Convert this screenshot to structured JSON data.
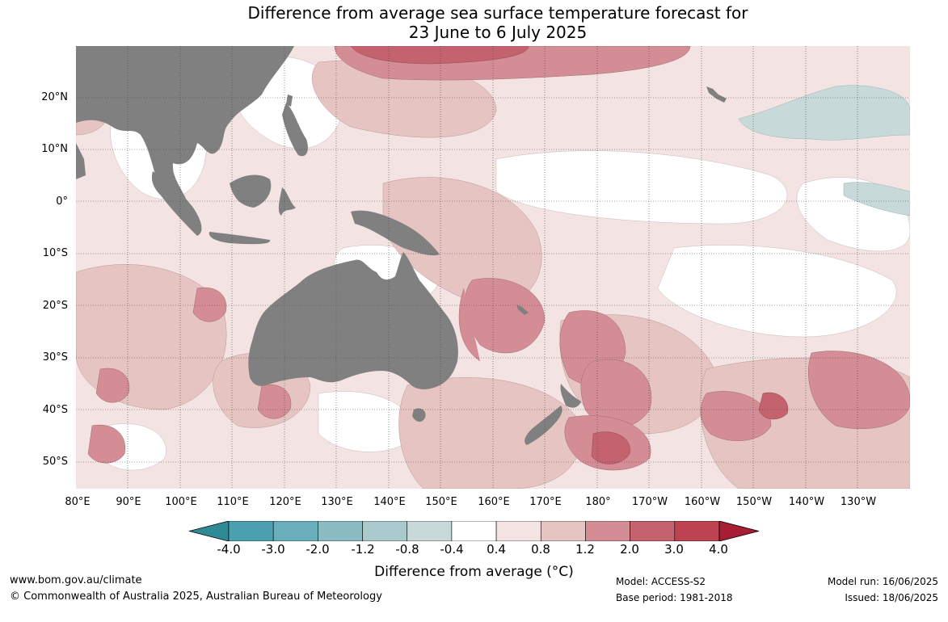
{
  "title_line1": "Difference from average sea surface temperature forecast for",
  "title_line2": "23 June to 6 July 2025",
  "map": {
    "lat_labels": [
      "20°N",
      "10°N",
      "0°",
      "10°S",
      "20°S",
      "30°S",
      "40°S",
      "50°S"
    ],
    "lon_labels": [
      "80°E",
      "90°E",
      "100°E",
      "110°E",
      "120°E",
      "130°E",
      "140°E",
      "150°E",
      "160°E",
      "170°E",
      "180°",
      "170°W",
      "160°W",
      "150°W",
      "140°W",
      "130°W"
    ],
    "land_color": "#808080",
    "grid": "dotted"
  },
  "colorbar": {
    "ticks": [
      "-4.0",
      "-3.0",
      "-2.0",
      "-1.2",
      "-0.8",
      "-0.4",
      "0.4",
      "0.8",
      "1.2",
      "2.0",
      "3.0",
      "4.0"
    ],
    "colors": [
      "#2f8a96",
      "#4aa0ae",
      "#6aaebb",
      "#8bbcc3",
      "#aac9cc",
      "#c8d9d9",
      "#ffffff",
      "#f3e4e3",
      "#e6c4c2",
      "#d48d94",
      "#c4626e",
      "#bc434f",
      "#a61d34"
    ],
    "label": "Difference from average (°C)"
  },
  "footer": {
    "website": "www.bom.gov.au/climate",
    "copyright": "© Commonwealth of Australia 2025, Australian Bureau of Meteorology",
    "model": "Model: ACCESS-S2",
    "base_period": "Base period: 1981-2018",
    "model_run": "Model run: 16/06/2025",
    "issued": "Issued: 18/06/2025"
  }
}
